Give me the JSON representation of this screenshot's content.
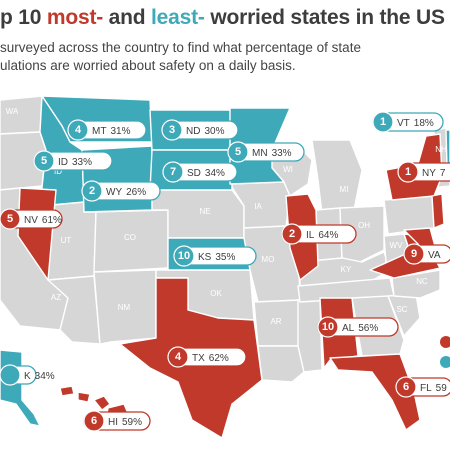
{
  "title": {
    "prefix": "p 10 ",
    "most": "most-",
    "middle": " and ",
    "least": "least-",
    "suffix": " worried states in the US"
  },
  "subtitle_lines": [
    "surveyed across the country to find what percentage of state",
    "ulations are worried about safety on a daily basis."
  ],
  "colors": {
    "most_worried": "#c0392b",
    "least_worried": "#3ea9b8",
    "other": "#d6d6d6"
  },
  "state_labels": [
    "WA",
    "ID",
    "NE",
    "IA",
    "UT",
    "CO",
    "MO",
    "KY",
    "WI",
    "MI",
    "OH",
    "IN",
    "NC",
    "AZ",
    "NM",
    "OK",
    "AR",
    "SC",
    "WV",
    "NH"
  ],
  "callouts": [
    {
      "rank": "1",
      "state": "VT",
      "percent": "18%",
      "group": "least"
    },
    {
      "rank": "1",
      "state": "NY",
      "percent": "7",
      "group": "most"
    },
    {
      "rank": "4",
      "state": "MT",
      "percent": "31%",
      "group": "least"
    },
    {
      "rank": "3",
      "state": "ND",
      "percent": "30%",
      "group": "least"
    },
    {
      "rank": "5",
      "state": "ID",
      "percent": "33%",
      "group": "least"
    },
    {
      "rank": "5",
      "state": "MN",
      "percent": "33%",
      "group": "least"
    },
    {
      "rank": "7",
      "state": "SD",
      "percent": "34%",
      "group": "least"
    },
    {
      "rank": "2",
      "state": "WY",
      "percent": "26%",
      "group": "least"
    },
    {
      "rank": "5",
      "state": "NV",
      "percent": "61%",
      "group": "most"
    },
    {
      "rank": "2",
      "state": "IL",
      "percent": "64%",
      "group": "most"
    },
    {
      "rank": "9",
      "state": "VA",
      "percent": "",
      "group": "most"
    },
    {
      "rank": "10",
      "state": "KS",
      "percent": "35%",
      "group": "least"
    },
    {
      "rank": "10",
      "state": "AL",
      "percent": "56%",
      "group": "most"
    },
    {
      "rank": "4",
      "state": "TX",
      "percent": "62%",
      "group": "most"
    },
    {
      "rank": "6",
      "state": "FL",
      "percent": "59",
      "group": "most"
    },
    {
      "rank": "",
      "state": "K",
      "percent": "34%",
      "group": "least"
    },
    {
      "rank": "6",
      "state": "HI",
      "percent": "59%",
      "group": "most"
    }
  ]
}
